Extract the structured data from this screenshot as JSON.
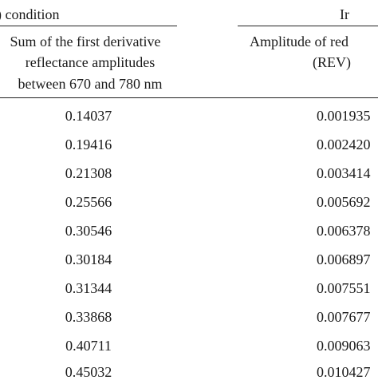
{
  "header": {
    "left_group_label": ") condition",
    "right_group_label": "Ir"
  },
  "columns": {
    "col1_lines": [
      "Sum of the first derivative",
      "reflectance amplitudes",
      "between 670 and 780 nm"
    ],
    "col2_lines": [
      "Amplitude of red",
      "(REV)"
    ]
  },
  "rows": [
    {
      "c1": "0.14037",
      "c2": "0.001935"
    },
    {
      "c1": "0.19416",
      "c2": "0.002420"
    },
    {
      "c1": "0.21308",
      "c2": "0.003414"
    },
    {
      "c1": "0.25566",
      "c2": "0.005692"
    },
    {
      "c1": "0.30546",
      "c2": "0.006378"
    },
    {
      "c1": "0.30184",
      "c2": "0.006897"
    },
    {
      "c1": "0.31344",
      "c2": "0.007551"
    },
    {
      "c1": "0.33868",
      "c2": "0.007677"
    },
    {
      "c1": "0.40711",
      "c2": "0.009063"
    },
    {
      "c1": "0.45032",
      "c2": "0.010427"
    }
  ]
}
